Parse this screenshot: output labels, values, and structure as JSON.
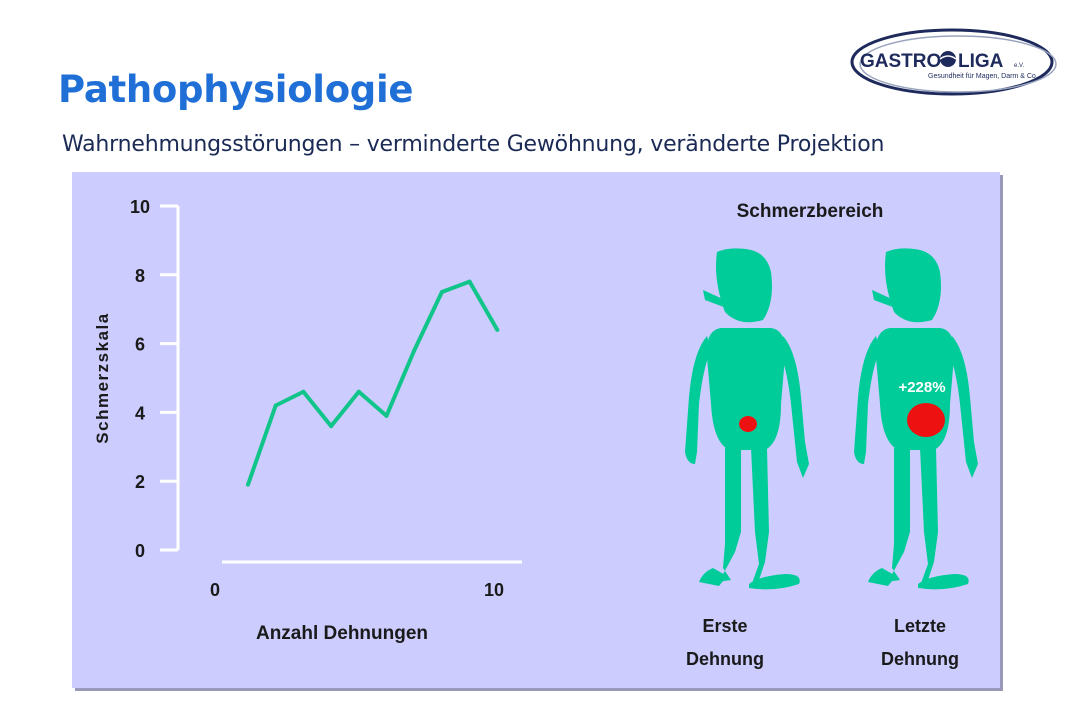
{
  "slide": {
    "title": "Pathophysiologie",
    "subtitle": "Wahrnehmungsstörungen – verminderte Gewöhnung, veränderte Projektion"
  },
  "logo": {
    "brand_left": "GASTRO",
    "brand_right": "LIGA",
    "suffix": "e.V.",
    "tagline": "Gesundheit für Magen, Darm & Co."
  },
  "figure": {
    "section_label": "Schmerzbereich",
    "first_label_line1": "Erste",
    "first_label_line2": "Dehnung",
    "last_label_line1": "Letzte",
    "last_label_line2": "Dehnung",
    "increase_label": "+228%"
  },
  "colors": {
    "accent_title": "#1f6fd6",
    "panel_bg": "#ccccff",
    "line": "#11c58a",
    "figure": "#00cc99",
    "pain_spot": "#ee1111"
  },
  "chart_data": {
    "type": "line",
    "xlabel": "Anzahl Dehnungen",
    "ylabel": "Schmerzskala",
    "xlim": [
      0,
      10
    ],
    "ylim": [
      0,
      10
    ],
    "x_tick_labels": [
      "0",
      "10"
    ],
    "y_tick_labels": [
      "0",
      "2",
      "4",
      "6",
      "8",
      "10"
    ],
    "grid": false,
    "series": [
      {
        "x": [
          0,
          1,
          2,
          3,
          4,
          5,
          6,
          7,
          8,
          9
        ],
        "values": [
          1.9,
          4.2,
          4.6,
          3.6,
          4.6,
          3.9,
          5.8,
          7.5,
          7.8,
          6.4
        ]
      }
    ]
  }
}
